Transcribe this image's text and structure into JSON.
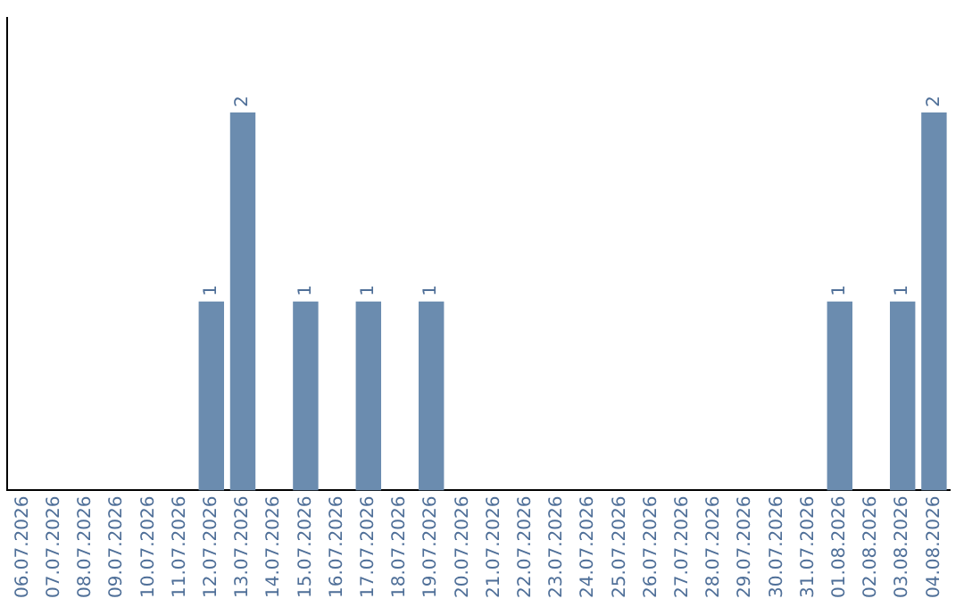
{
  "chart_data": {
    "type": "bar",
    "categories": [
      "06.07.2026",
      "07.07.2026",
      "08.07.2026",
      "09.07.2026",
      "10.07.2026",
      "11.07.2026",
      "12.07.2026",
      "13.07.2026",
      "14.07.2026",
      "15.07.2026",
      "16.07.2026",
      "17.07.2026",
      "18.07.2026",
      "19.07.2026",
      "20.07.2026",
      "21.07.2026",
      "22.07.2026",
      "23.07.2026",
      "24.07.2026",
      "25.07.2026",
      "26.07.2026",
      "27.07.2026",
      "28.07.2026",
      "29.07.2026",
      "30.07.2026",
      "31.07.2026",
      "01.08.2026",
      "02.08.2026",
      "03.08.2026",
      "04.08.2026"
    ],
    "values": [
      0,
      0,
      0,
      0,
      0,
      0,
      1,
      2,
      0,
      1,
      0,
      1,
      0,
      1,
      0,
      0,
      0,
      0,
      0,
      0,
      0,
      0,
      0,
      0,
      0,
      0,
      1,
      0,
      1,
      2
    ],
    "value_labels": [
      null,
      null,
      null,
      null,
      null,
      null,
      "1",
      "2",
      null,
      "1",
      null,
      "1",
      null,
      "1",
      null,
      null,
      null,
      null,
      null,
      null,
      null,
      null,
      null,
      null,
      null,
      null,
      "1",
      null,
      "1",
      "2"
    ],
    "color": "#6b8caf",
    "grid": false,
    "legend": false
  }
}
